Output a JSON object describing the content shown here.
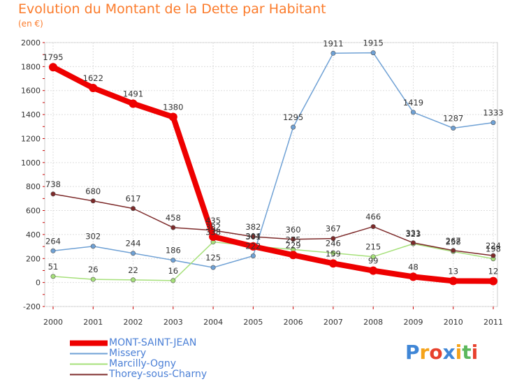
{
  "chart_data": {
    "type": "line",
    "title": "Evolution du Montant de la Dette par Habitant",
    "subtitle": "(en €)",
    "xlabel": "",
    "ylabel": "",
    "x": [
      "2000",
      "2001",
      "2002",
      "2003",
      "2004",
      "2005",
      "2006",
      "2007",
      "2008",
      "2009",
      "2010",
      "2011"
    ],
    "ylim": [
      -200,
      2000
    ],
    "yticks": [
      "-200",
      "0",
      "200",
      "400",
      "600",
      "800",
      "1000",
      "1200",
      "1400",
      "1600",
      "1800",
      "2000"
    ],
    "grid": true,
    "legend_position": "bottom-left",
    "series": [
      {
        "name": "MONT-SAINT-JEAN",
        "color": "#ee0000",
        "values": [
          1795,
          1622,
          1491,
          1380,
          382,
          301,
          229,
          159,
          99,
          48,
          13,
          12
        ],
        "labels": [
          "1795",
          "1622",
          "1491",
          "1380",
          "382",
          "301",
          "229",
          "159",
          "99",
          "48",
          "13",
          "12"
        ]
      },
      {
        "name": "Missery",
        "color": "#6fa1d5",
        "values": [
          264,
          302,
          244,
          186,
          125,
          222,
          1295,
          1911,
          1915,
          1419,
          1287,
          1333
        ],
        "labels": [
          "264",
          "302",
          "244",
          "186",
          "125",
          "222",
          "1295",
          "1911",
          "1915",
          "1419",
          "1287",
          "1333"
        ]
      },
      {
        "name": "Marcilly-Ogny",
        "color": "#a6e07a",
        "values": [
          51,
          26,
          22,
          16,
          338,
          304,
          275,
          246,
          215,
          323,
          258,
          198
        ],
        "labels": [
          "51",
          "26",
          "22",
          "16",
          "338",
          "304",
          "275",
          "246",
          "215",
          "323",
          "258",
          "198"
        ]
      },
      {
        "name": "Thorey-sous-Charny",
        "color": "#7d2a2a",
        "values": [
          738,
          680,
          617,
          458,
          435,
          382,
          360,
          367,
          466,
          331,
          267,
          224
        ],
        "labels": [
          "738",
          "680",
          "617",
          "458",
          "435",
          "382",
          "360",
          "367",
          "466",
          "331",
          "267",
          "224"
        ]
      }
    ]
  },
  "logo": {
    "text": [
      "P",
      "r",
      "o",
      "x",
      "i",
      "t",
      "i"
    ],
    "colors": [
      "#3f86d6",
      "#f5a31a",
      "#e7412d",
      "#3f86d6",
      "#f5a31a",
      "#5cb85c",
      "#e7412d"
    ]
  }
}
